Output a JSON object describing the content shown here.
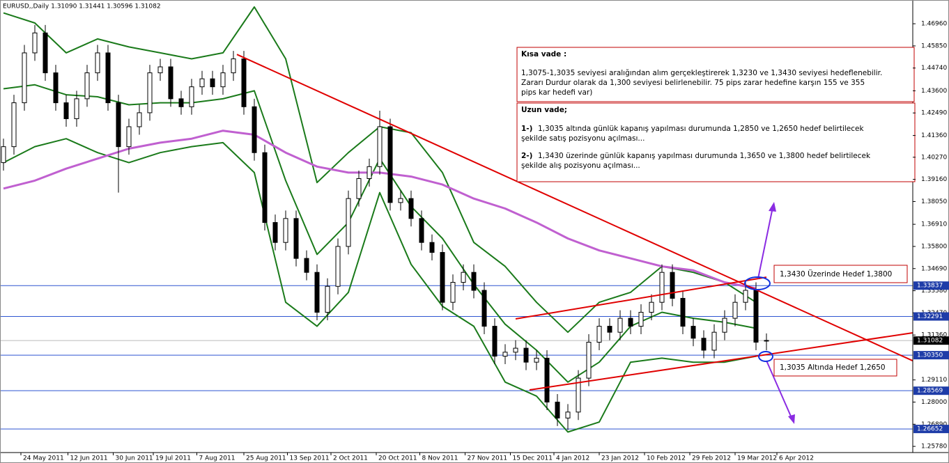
{
  "header": "EURUSD,,Daily 1.31090 1.31441 1.30596 1.31082",
  "chart_data": {
    "type": "candlestick",
    "x": [
      1,
      4,
      7,
      10,
      13,
      16,
      19,
      22,
      25,
      28,
      31,
      34,
      37,
      40,
      43,
      46,
      49,
      52,
      55,
      58,
      61,
      64,
      67,
      70,
      73,
      76,
      79,
      82,
      85,
      88,
      91,
      94,
      97,
      100,
      103,
      106,
      109,
      112,
      115,
      118,
      121,
      124,
      127,
      130,
      133,
      136,
      139,
      142,
      145,
      148,
      151,
      154,
      157,
      160,
      163,
      166,
      169,
      172,
      175,
      178,
      181,
      184,
      187,
      190,
      193,
      196,
      199,
      202,
      205,
      208,
      211,
      214,
      217,
      220
    ],
    "open": [
      1.4,
      1.408,
      1.43,
      1.455,
      1.465,
      1.445,
      1.43,
      1.422,
      1.432,
      1.445,
      1.455,
      1.43,
      1.408,
      1.418,
      1.425,
      1.445,
      1.448,
      1.432,
      1.428,
      1.438,
      1.442,
      1.438,
      1.445,
      1.452,
      1.428,
      1.405,
      1.37,
      1.36,
      1.372,
      1.352,
      1.345,
      1.325,
      1.338,
      1.358,
      1.382,
      1.392,
      1.398,
      1.418,
      1.38,
      1.382,
      1.372,
      1.36,
      1.355,
      1.33,
      1.34,
      1.345,
      1.336,
      1.318,
      1.303,
      1.305,
      1.307,
      1.3,
      1.302,
      1.28,
      1.272,
      1.275,
      1.292,
      1.31,
      1.318,
      1.315,
      1.322,
      1.318,
      1.325,
      1.33,
      1.345,
      1.332,
      1.318,
      1.312,
      1.306,
      1.315,
      1.322,
      1.33,
      1.336,
      1.3109
    ],
    "high": [
      1.412,
      1.434,
      1.459,
      1.469,
      1.469,
      1.449,
      1.434,
      1.436,
      1.449,
      1.459,
      1.459,
      1.434,
      1.422,
      1.429,
      1.449,
      1.452,
      1.452,
      1.436,
      1.442,
      1.446,
      1.446,
      1.449,
      1.456,
      1.456,
      1.432,
      1.409,
      1.374,
      1.376,
      1.376,
      1.356,
      1.349,
      1.342,
      1.362,
      1.386,
      1.396,
      1.402,
      1.426,
      1.422,
      1.386,
      1.386,
      1.376,
      1.364,
      1.359,
      1.344,
      1.349,
      1.349,
      1.34,
      1.322,
      1.309,
      1.311,
      1.311,
      1.306,
      1.306,
      1.284,
      1.279,
      1.296,
      1.314,
      1.322,
      1.322,
      1.326,
      1.326,
      1.329,
      1.334,
      1.349,
      1.349,
      1.336,
      1.322,
      1.316,
      1.319,
      1.326,
      1.334,
      1.34,
      1.34,
      1.31441
    ],
    "low": [
      1.396,
      1.404,
      1.426,
      1.451,
      1.441,
      1.426,
      1.418,
      1.418,
      1.428,
      1.441,
      1.426,
      1.385,
      1.404,
      1.414,
      1.421,
      1.441,
      1.428,
      1.424,
      1.424,
      1.434,
      1.434,
      1.434,
      1.441,
      1.424,
      1.401,
      1.366,
      1.356,
      1.356,
      1.348,
      1.341,
      1.321,
      1.321,
      1.334,
      1.354,
      1.378,
      1.388,
      1.394,
      1.376,
      1.376,
      1.368,
      1.356,
      1.351,
      1.326,
      1.326,
      1.336,
      1.332,
      1.314,
      1.299,
      1.299,
      1.301,
      1.296,
      1.296,
      1.276,
      1.268,
      1.266,
      1.271,
      1.288,
      1.306,
      1.311,
      1.311,
      1.314,
      1.314,
      1.321,
      1.326,
      1.328,
      1.314,
      1.308,
      1.302,
      1.302,
      1.311,
      1.318,
      1.326,
      1.306,
      1.30596
    ],
    "close": [
      1.408,
      1.43,
      1.455,
      1.465,
      1.445,
      1.43,
      1.422,
      1.432,
      1.445,
      1.455,
      1.43,
      1.408,
      1.418,
      1.425,
      1.445,
      1.448,
      1.432,
      1.428,
      1.438,
      1.442,
      1.438,
      1.445,
      1.452,
      1.428,
      1.405,
      1.37,
      1.36,
      1.372,
      1.352,
      1.345,
      1.325,
      1.338,
      1.358,
      1.382,
      1.392,
      1.398,
      1.418,
      1.38,
      1.382,
      1.372,
      1.36,
      1.355,
      1.33,
      1.34,
      1.345,
      1.336,
      1.318,
      1.303,
      1.305,
      1.307,
      1.3,
      1.302,
      1.28,
      1.272,
      1.275,
      1.292,
      1.31,
      1.318,
      1.315,
      1.322,
      1.318,
      1.325,
      1.33,
      1.345,
      1.332,
      1.318,
      1.312,
      1.306,
      1.315,
      1.322,
      1.33,
      1.336,
      1.31,
      1.31082
    ],
    "line_x": [
      1,
      10,
      19,
      28,
      37,
      46,
      55,
      64,
      73,
      82,
      91,
      100,
      109,
      118,
      127,
      136,
      145,
      154,
      163,
      172,
      181,
      190,
      199,
      208,
      217
    ],
    "lines": [
      {
        "color": "#1a7a1a",
        "values": [
          1.475,
          1.47,
          1.455,
          1.462,
          1.458,
          1.455,
          1.452,
          1.455,
          1.478,
          1.452,
          1.39,
          1.405,
          1.418,
          1.415,
          1.395,
          1.36,
          1.348,
          1.33,
          1.315,
          1.33,
          1.335,
          1.348,
          1.345,
          1.34,
          1.33
        ]
      },
      {
        "color": "#1a7a1a",
        "values": [
          1.437,
          1.439,
          1.434,
          1.433,
          1.429,
          1.43,
          1.43,
          1.432,
          1.436,
          1.391,
          1.354,
          1.37,
          1.402,
          1.378,
          1.362,
          1.339,
          1.319,
          1.306,
          1.29,
          1.3,
          1.318,
          1.325,
          1.322,
          1.32,
          1.317
        ]
      },
      {
        "color": "#1a7a1a",
        "values": [
          1.4,
          1.408,
          1.412,
          1.405,
          1.4,
          1.405,
          1.408,
          1.41,
          1.395,
          1.33,
          1.318,
          1.335,
          1.385,
          1.349,
          1.328,
          1.318,
          1.29,
          1.283,
          1.265,
          1.27,
          1.3,
          1.302,
          1.3,
          1.3,
          1.303
        ]
      },
      {
        "color": "#c060d0",
        "values": [
          1.387,
          1.391,
          1.397,
          1.402,
          1.407,
          1.41,
          1.412,
          1.416,
          1.414,
          1.405,
          1.398,
          1.395,
          1.395,
          1.393,
          1.389,
          1.382,
          1.377,
          1.37,
          1.362,
          1.356,
          1.352,
          1.348,
          1.346,
          1.34,
          1.337
        ]
      }
    ],
    "trend_lines": [
      {
        "color": "#e00000",
        "x": [
          68,
          262
        ],
        "y": [
          1.4542,
          1.3007
        ]
      },
      {
        "color": "#e00000",
        "x": [
          152,
          262
        ],
        "y": [
          1.2861,
          1.3147
        ]
      },
      {
        "color": "#e00000",
        "x": [
          148,
          220
        ],
        "y": [
          1.3217,
          1.3426
        ]
      }
    ],
    "xlim": [
      0,
      262
    ],
    "xticks": [
      {
        "value": 6,
        "label": "24 May 2011"
      },
      {
        "value": 19.5,
        "label": "12 Jun 2011"
      },
      {
        "value": 32.5,
        "label": "30 Jun 2011"
      },
      {
        "value": 44,
        "label": "19 Jul 2011"
      },
      {
        "value": 56.5,
        "label": "7 Aug 2011"
      },
      {
        "value": 70,
        "label": "25 Aug 2011"
      },
      {
        "value": 82.5,
        "label": "13 Sep 2011"
      },
      {
        "value": 95,
        "label": "2 Oct 2011"
      },
      {
        "value": 108,
        "label": "20 Oct 2011"
      },
      {
        "value": 120.5,
        "label": "8 Nov 2011"
      },
      {
        "value": 133.5,
        "label": "27 Nov 2011"
      },
      {
        "value": 146.5,
        "label": "15 Dec 2011"
      },
      {
        "value": 159,
        "label": "4 Jan 2012"
      },
      {
        "value": 172,
        "label": "23 Jan 2012"
      },
      {
        "value": 185,
        "label": "10 Feb 2012"
      },
      {
        "value": 198,
        "label": "29 Feb 2012"
      },
      {
        "value": 211,
        "label": "19 Mar 2012"
      },
      {
        "value": 223,
        "label": "6 Apr 2012"
      }
    ],
    "ylim": [
      1.2547,
      1.4815
    ],
    "yticks": [
      {
        "value": 1.4696,
        "label": "1.46960"
      },
      {
        "value": 1.4585,
        "label": "1.45850"
      },
      {
        "value": 1.4474,
        "label": "1.44740"
      },
      {
        "value": 1.436,
        "label": "1.43600"
      },
      {
        "value": 1.4249,
        "label": "1.42490"
      },
      {
        "value": 1.4136,
        "label": "1.41360"
      },
      {
        "value": 1.4027,
        "label": "1.40270"
      },
      {
        "value": 1.3916,
        "label": "1.39160"
      },
      {
        "value": 1.3805,
        "label": "1.38050"
      },
      {
        "value": 1.3691,
        "label": "1.36910"
      },
      {
        "value": 1.358,
        "label": "1.35800"
      },
      {
        "value": 1.3469,
        "label": "1.34690"
      },
      {
        "value": 1.3358,
        "label": "1.33580"
      },
      {
        "value": 1.3247,
        "label": "1.32470"
      },
      {
        "value": 1.3136,
        "label": "1.31360"
      },
      {
        "value": 1.2911,
        "label": "1.29110"
      },
      {
        "value": 1.28,
        "label": "1.28000"
      },
      {
        "value": 1.2689,
        "label": "1.26890"
      },
      {
        "value": 1.2578,
        "label": "1.25780"
      }
    ],
    "levels": [
      {
        "value": 1.33837,
        "label": "1.33837"
      },
      {
        "value": 1.32291,
        "label": "1.32291"
      },
      {
        "value": 1.3035,
        "label": "1.30350"
      },
      {
        "value": 1.28569,
        "label": "1.28569"
      },
      {
        "value": 1.26652,
        "label": "1.26652"
      }
    ],
    "last": 1.31082,
    "notes": {
      "short": {
        "title": "Kısa vade :",
        "lines": [
          "1,3075-1,3035 seviyesi aralığından alım gerçekleştirerek 1,3230 ve 1,3430 seviyesi hedeflenebilir.",
          "Zararı Durdur olarak da 1,300 seviyesi belirlenebilir. 75 pips zarar hedefine karşın 155 ve 355",
          "pips kar hedefi var)"
        ]
      },
      "long": {
        "title": "Uzun vade;",
        "items": [
          {
            "num": "1-)",
            "lines": [
              "1,3035 altında günlük kapanış yapılması durumunda 1,2850 ve 1,2650 hedef belirtilecek",
              "şekilde satış pozisyonu açılması..."
            ]
          },
          {
            "num": "2-)",
            "lines": [
              "1,3430 üzerinde günlük kapanış yapılması durumunda 1,3650 ve 1,3800 hedef belirtilecek",
              "şekilde alış pozisyonu açılması..."
            ]
          }
        ]
      }
    },
    "callouts": [
      "1,3430 Üzerinde Hedef 1,3800",
      "1,3035 Altında Hedef 1,2650"
    ]
  }
}
